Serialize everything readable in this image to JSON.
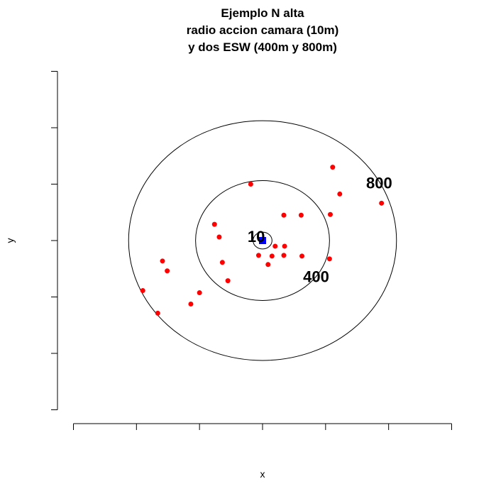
{
  "chart_data": {
    "type": "scatter",
    "title_lines": [
      "Ejemplo N alta",
      "radio accion camara (10m)",
      "y dos ESW (400m y 800m)"
    ],
    "xlabel": "x",
    "ylabel": "y",
    "xlim": [
      -1200,
      1200
    ],
    "ylim": [
      -1200,
      1200
    ],
    "x_ticks": [
      -1200,
      -800,
      -400,
      0,
      400,
      800,
      1200
    ],
    "y_ticks": [
      -1200,
      -800,
      -400,
      0,
      400,
      800,
      1200
    ],
    "tick_labels_shown": false,
    "grid": false,
    "center": {
      "x": 0,
      "y": 0,
      "color": "#0000ff",
      "marker": "square"
    },
    "circles": [
      {
        "radius": 60,
        "label": "10",
        "label_x": -40,
        "label_y": 30
      },
      {
        "radius": 425,
        "label": "400",
        "label_x": 340,
        "label_y": -255
      },
      {
        "radius": 850,
        "label": "800",
        "label_x": 740,
        "label_y": 410
      }
    ],
    "series": [
      {
        "color": "#ff0000",
        "marker": "circle",
        "points": [
          {
            "x": -75,
            "y": 400
          },
          {
            "x": 445,
            "y": 520
          },
          {
            "x": 490,
            "y": 330
          },
          {
            "x": 755,
            "y": 265
          },
          {
            "x": 135,
            "y": 180
          },
          {
            "x": 245,
            "y": 180
          },
          {
            "x": 430,
            "y": 185
          },
          {
            "x": -305,
            "y": 115
          },
          {
            "x": -275,
            "y": 25
          },
          {
            "x": 80,
            "y": -40
          },
          {
            "x": 140,
            "y": -40
          },
          {
            "x": -25,
            "y": -105
          },
          {
            "x": 60,
            "y": -110
          },
          {
            "x": 135,
            "y": -105
          },
          {
            "x": 250,
            "y": -110
          },
          {
            "x": 425,
            "y": -130
          },
          {
            "x": -255,
            "y": -155
          },
          {
            "x": 35,
            "y": -170
          },
          {
            "x": -635,
            "y": -145
          },
          {
            "x": -605,
            "y": -215
          },
          {
            "x": -220,
            "y": -285
          },
          {
            "x": -760,
            "y": -355
          },
          {
            "x": -400,
            "y": -370
          },
          {
            "x": -455,
            "y": -450
          },
          {
            "x": -665,
            "y": -515
          }
        ]
      }
    ]
  }
}
